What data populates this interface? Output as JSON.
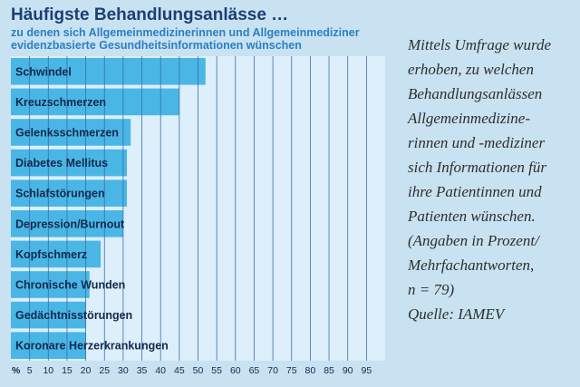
{
  "title": "Häufigste Behandlungsanlässe …",
  "subtitle_line1": "zu denen sich Allgemeinmedizinerinnen und Allgemeinmediziner",
  "subtitle_line2": "evidenzbasierte Gesundheitsinformationen wünschen",
  "colors": {
    "background": "#c8e2f1",
    "plot_background": "#dceffa",
    "bar": "#4ab6e5",
    "grid": "#3a6fb0",
    "title": "#1c3f73",
    "subtitle": "#2b7fc3"
  },
  "chart_data": {
    "type": "bar",
    "orientation": "horizontal",
    "categories": [
      "Schwindel",
      "Kreuzschmerzen",
      "Gelenksschmerzen",
      "Diabetes Mellitus",
      "Schlafstörungen",
      "Depression/Burnout",
      "Kopfschmerz",
      "Chronische Wunden",
      "Gedächtnisstörungen",
      "Koronare Herzerkrankungen"
    ],
    "values": [
      52,
      45,
      32,
      31,
      31,
      30,
      24,
      21,
      20,
      20
    ],
    "x_unit_label": "%",
    "x_ticks": [
      5,
      10,
      15,
      20,
      25,
      30,
      35,
      40,
      45,
      50,
      55,
      60,
      65,
      70,
      75,
      80,
      85,
      90,
      95
    ],
    "xlim": [
      0,
      100
    ],
    "grid": true,
    "legend": "none"
  },
  "note_lines": [
    "Mittels Umfrage wurde",
    "erhoben, zu welchen",
    "Behandlungsanlässen",
    "Allgemeinmedizine-",
    "rinnen und -mediziner",
    "sich Informationen für",
    "ihre Patientinnen und",
    "Patienten wünschen.",
    "(Angaben in Prozent/",
    "Mehrfachantworten,",
    "n = 79)",
    "Quelle: IAMEV"
  ]
}
